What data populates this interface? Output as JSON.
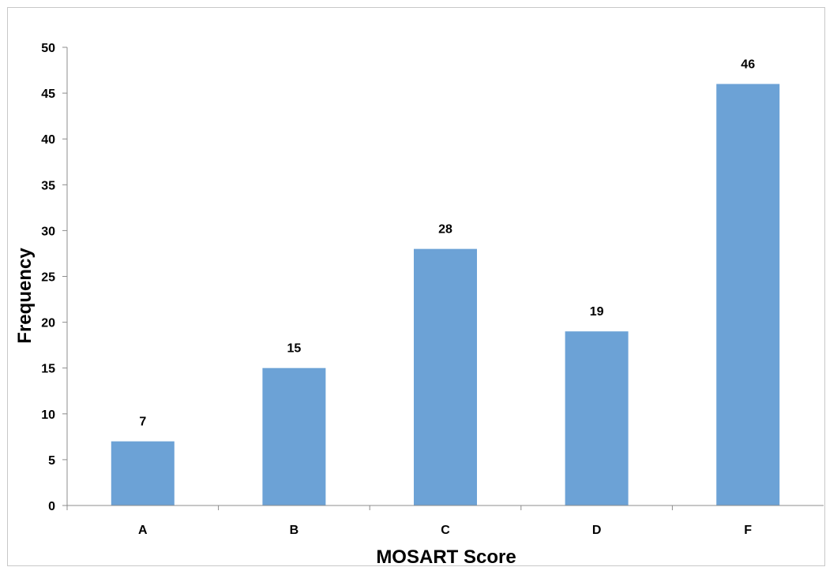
{
  "chart_data": {
    "type": "bar",
    "title": "",
    "xlabel": "MOSART Score",
    "ylabel": "Frequency",
    "categories": [
      "A",
      "B",
      "C",
      "D",
      "F"
    ],
    "values": [
      7,
      15,
      28,
      19,
      46
    ],
    "ylim": [
      0,
      50
    ],
    "yticks": [
      0,
      5,
      10,
      15,
      20,
      25,
      30,
      35,
      40,
      45,
      50
    ],
    "data_labels": [
      "7",
      "15",
      "28",
      "19",
      "46"
    ],
    "grid": false,
    "legend": "none",
    "bar_color": "#6ca2d6",
    "axis_color": "#8c8c8c"
  }
}
